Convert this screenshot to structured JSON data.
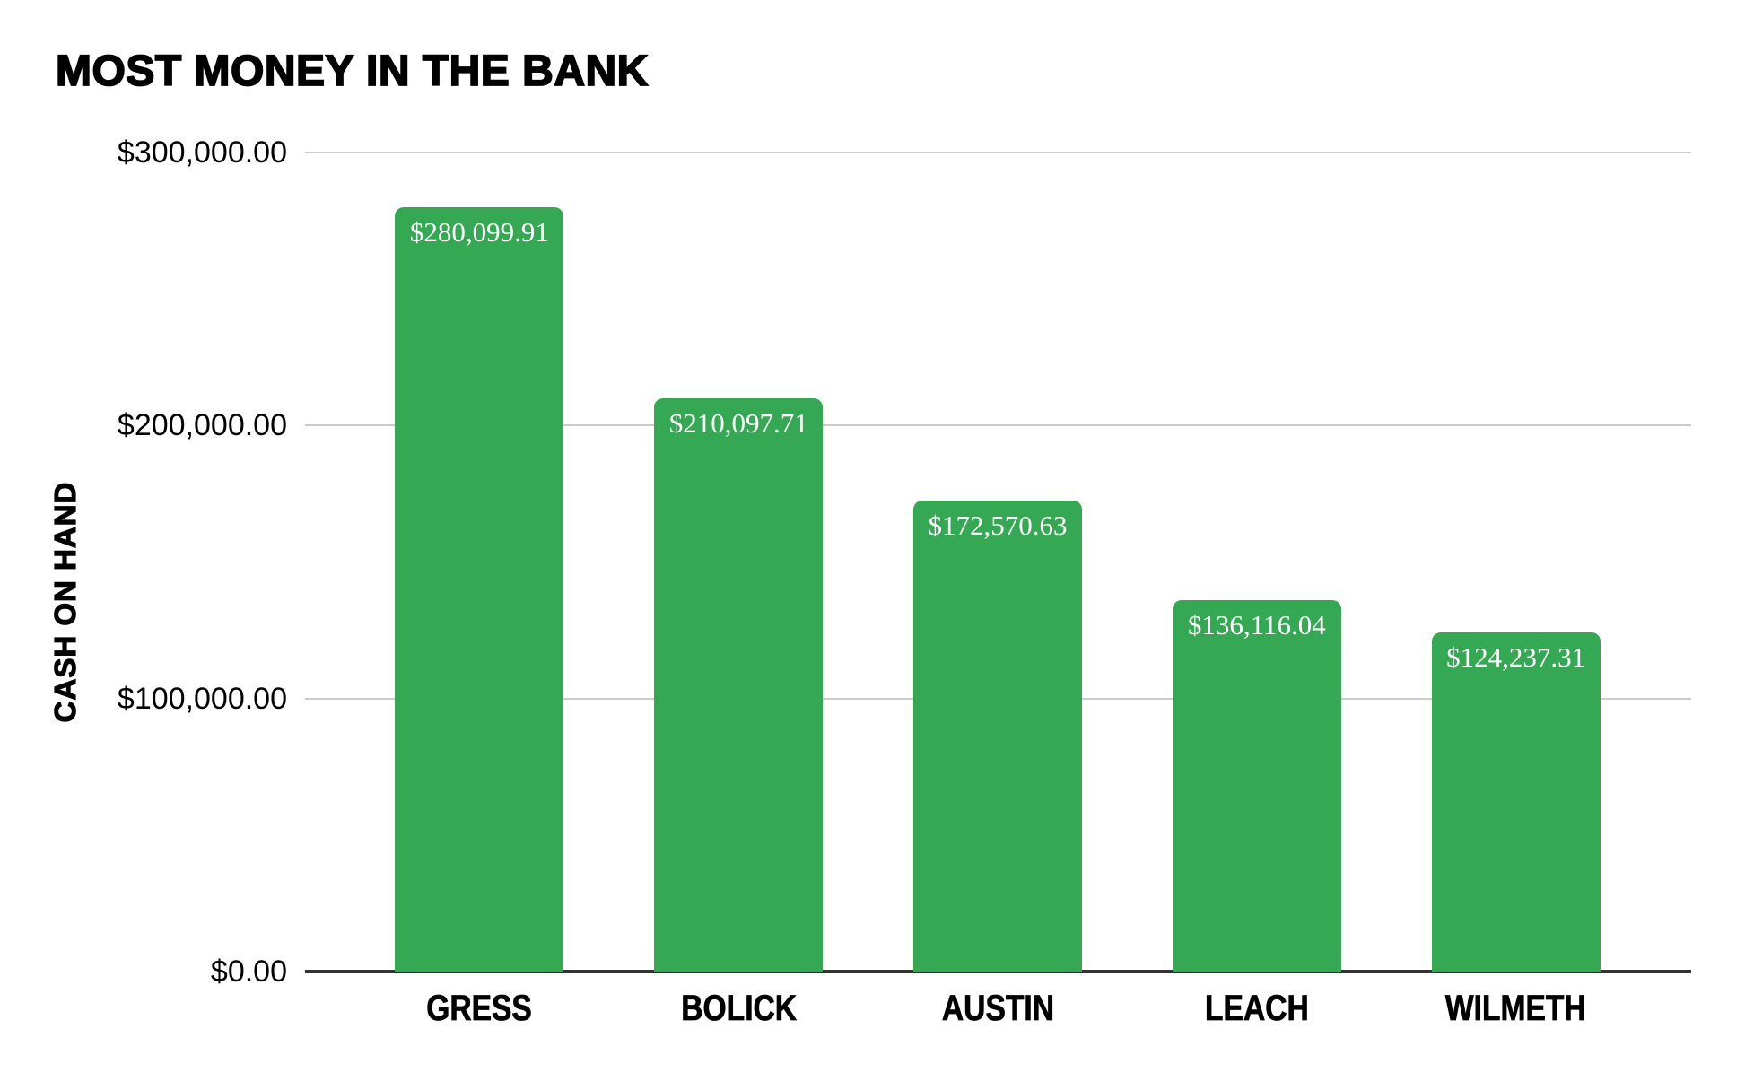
{
  "chart_data": {
    "type": "bar",
    "title": "MOST MONEY IN THE BANK",
    "xlabel": "",
    "ylabel": "CASH ON HAND",
    "categories": [
      "GRESS",
      "BOLICK",
      "AUSTIN",
      "LEACH",
      "WILMETH"
    ],
    "values": [
      280099.91,
      210097.71,
      172570.63,
      136116.04,
      124237.31
    ],
    "bar_labels": [
      "$280,099.91",
      "$210,097.71",
      "$172,570.63",
      "$136,116.04",
      "$124,237.31"
    ],
    "ylim": [
      0,
      300000
    ],
    "yticks": [
      {
        "value": 300000,
        "label": "$300,000.00"
      },
      {
        "value": 200000,
        "label": "$200,000.00"
      },
      {
        "value": 100000,
        "label": "$100,000.00"
      },
      {
        "value": 0,
        "label": "$0.00"
      }
    ],
    "grid": true,
    "legend": false,
    "colors": {
      "bar": "#34A853",
      "bar_label_text": "#FFFFFF",
      "gridline": "#CCCCCC",
      "axis_line": "#333333",
      "text": "#000000",
      "background": "#FFFFFF"
    }
  }
}
